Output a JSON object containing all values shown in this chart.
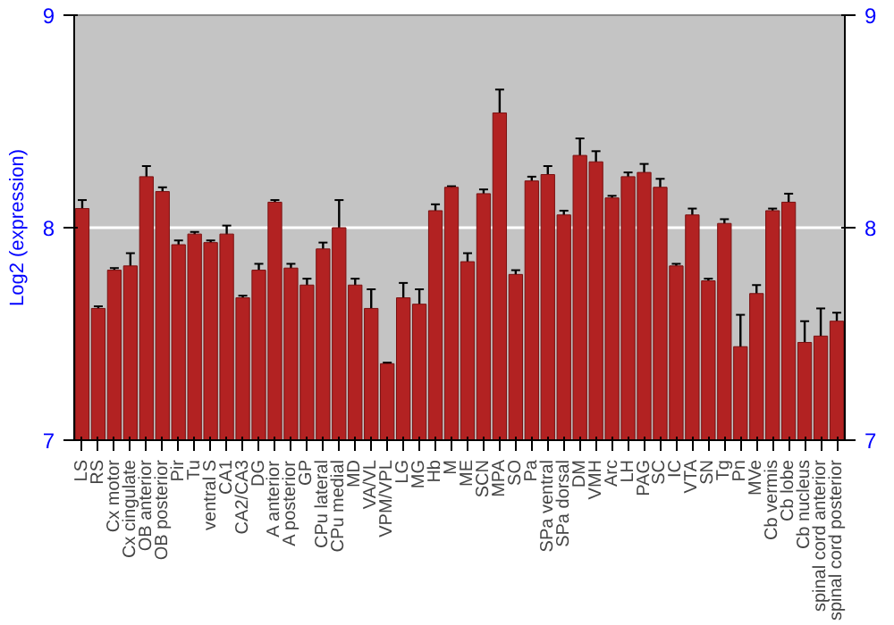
{
  "chart_data": {
    "type": "bar",
    "ylabel": "Log2 (expression)",
    "categories": [
      "LS",
      "RS",
      "Cx motor",
      "Cx cingulate",
      "OB anterior",
      "OB posterior",
      "Pir",
      "Tu",
      "ventral S",
      "CA1",
      "CA2/CA3",
      "DG",
      "A anterior",
      "A posterior",
      "GP",
      "CPu lateral",
      "CPu medial",
      "MD",
      "VA/VL",
      "VPM/VPL",
      "LG",
      "MG",
      "Hb",
      "M",
      "ME",
      "SCN",
      "MPA",
      "SO",
      "Pa",
      "SPa ventral",
      "SPa dorsal",
      "DM",
      "VMH",
      "Arc",
      "LH",
      "PAG",
      "SC",
      "IC",
      "VTA",
      "SN",
      "Tg",
      "Pn",
      "MVe",
      "Cb vermis",
      "Cb lobe",
      "Cb nucleus",
      "spinal cord anterior",
      "spinal cord posterior"
    ],
    "values": [
      8.09,
      7.62,
      7.8,
      7.82,
      8.24,
      8.17,
      7.92,
      7.97,
      7.93,
      7.97,
      7.67,
      7.8,
      8.12,
      7.81,
      7.73,
      7.9,
      8.0,
      7.73,
      7.62,
      7.36,
      7.67,
      7.64,
      8.08,
      8.19,
      7.84,
      8.16,
      8.54,
      7.78,
      8.22,
      8.25,
      8.06,
      8.34,
      8.31,
      8.14,
      8.24,
      8.26,
      8.19,
      7.82,
      8.06,
      7.75,
      8.02,
      7.44,
      7.69,
      8.08,
      8.12,
      7.46,
      7.49,
      7.56
    ],
    "errors": [
      0.04,
      0.01,
      0.01,
      0.06,
      0.05,
      0.02,
      0.02,
      0.01,
      0.01,
      0.04,
      0.01,
      0.03,
      0.01,
      0.02,
      0.03,
      0.03,
      0.13,
      0.03,
      0.09,
      0.005,
      0.07,
      0.07,
      0.03,
      0.005,
      0.04,
      0.02,
      0.11,
      0.02,
      0.02,
      0.04,
      0.02,
      0.08,
      0.05,
      0.01,
      0.02,
      0.04,
      0.04,
      0.01,
      0.03,
      0.01,
      0.02,
      0.15,
      0.04,
      0.01,
      0.04,
      0.1,
      0.13,
      0.04
    ],
    "color": "#b22222",
    "ylim": [
      7,
      9
    ],
    "yticks": [
      7,
      8,
      9
    ],
    "y2lim": [
      7,
      9
    ],
    "y2ticks": [
      7,
      8,
      9
    ],
    "grid": "y"
  }
}
